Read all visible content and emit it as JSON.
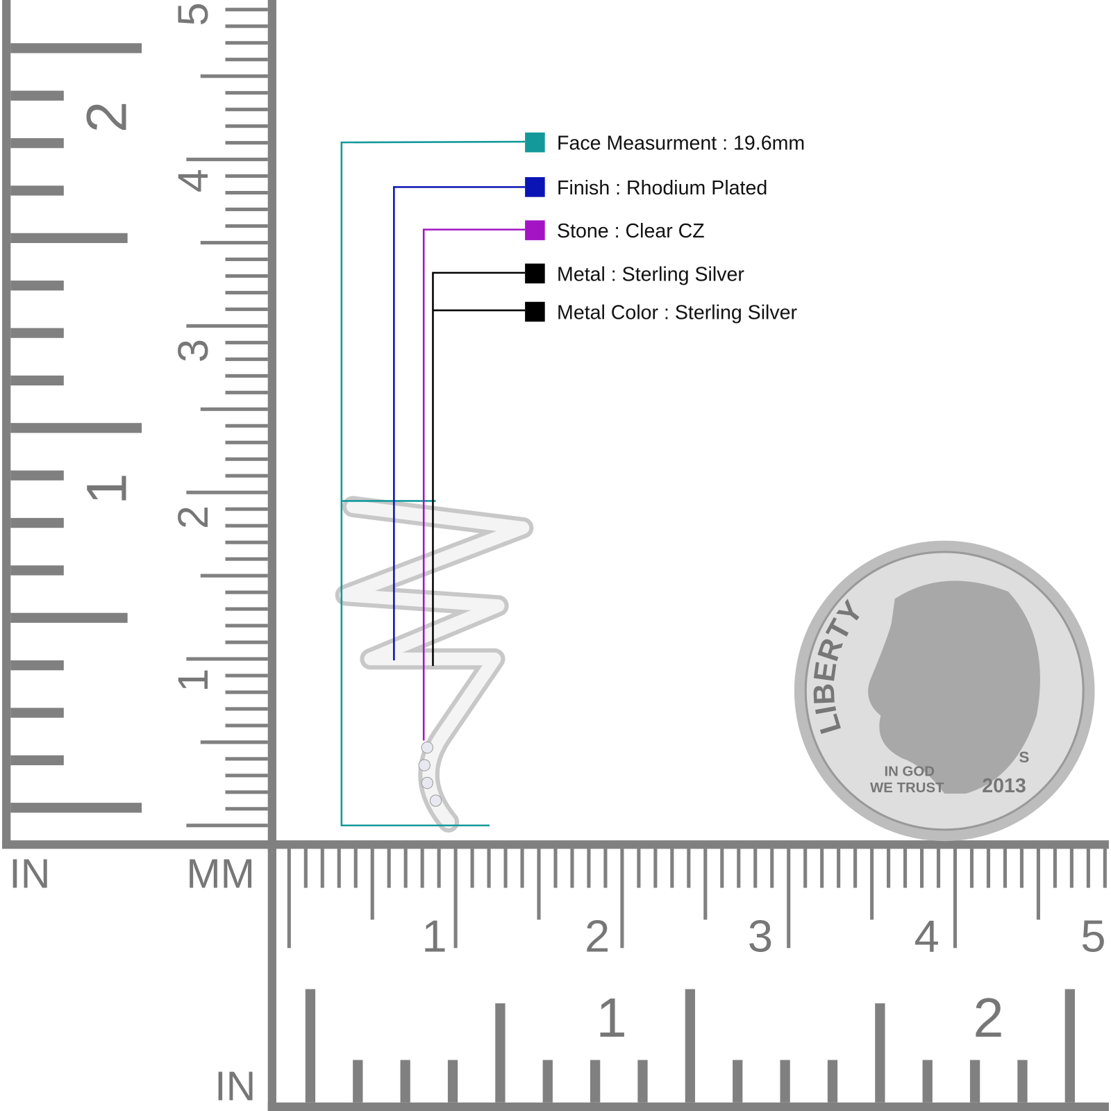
{
  "specs": [
    {
      "label": "Face Measurment : 19.6mm",
      "color": "#14999a"
    },
    {
      "label": "Finish : Rhodium Plated",
      "color": "#0a14b4"
    },
    {
      "label": "Stone : Clear CZ",
      "color": "#a414c4"
    },
    {
      "label": "Metal : Sterling Silver",
      "color": "#000000"
    },
    {
      "label": "Metal Color : Sterling Silver",
      "color": "#000000"
    }
  ],
  "left_ruler": {
    "unit_in": "IN",
    "unit_mm": "MM",
    "mm_labels": [
      "5",
      "4",
      "3",
      "2",
      "1"
    ],
    "in_labels": [
      "2",
      "1"
    ]
  },
  "bottom_ruler": {
    "unit_in": "IN",
    "mm_labels": [
      "1",
      "2",
      "3",
      "4",
      "5"
    ],
    "in_labels": [
      "1",
      "2"
    ]
  },
  "coin": {
    "legend": "LIBERTY",
    "motto_line1": "IN GOD",
    "motto_line2": "WE TRUST",
    "year": "2013",
    "mint_mark": "S"
  }
}
